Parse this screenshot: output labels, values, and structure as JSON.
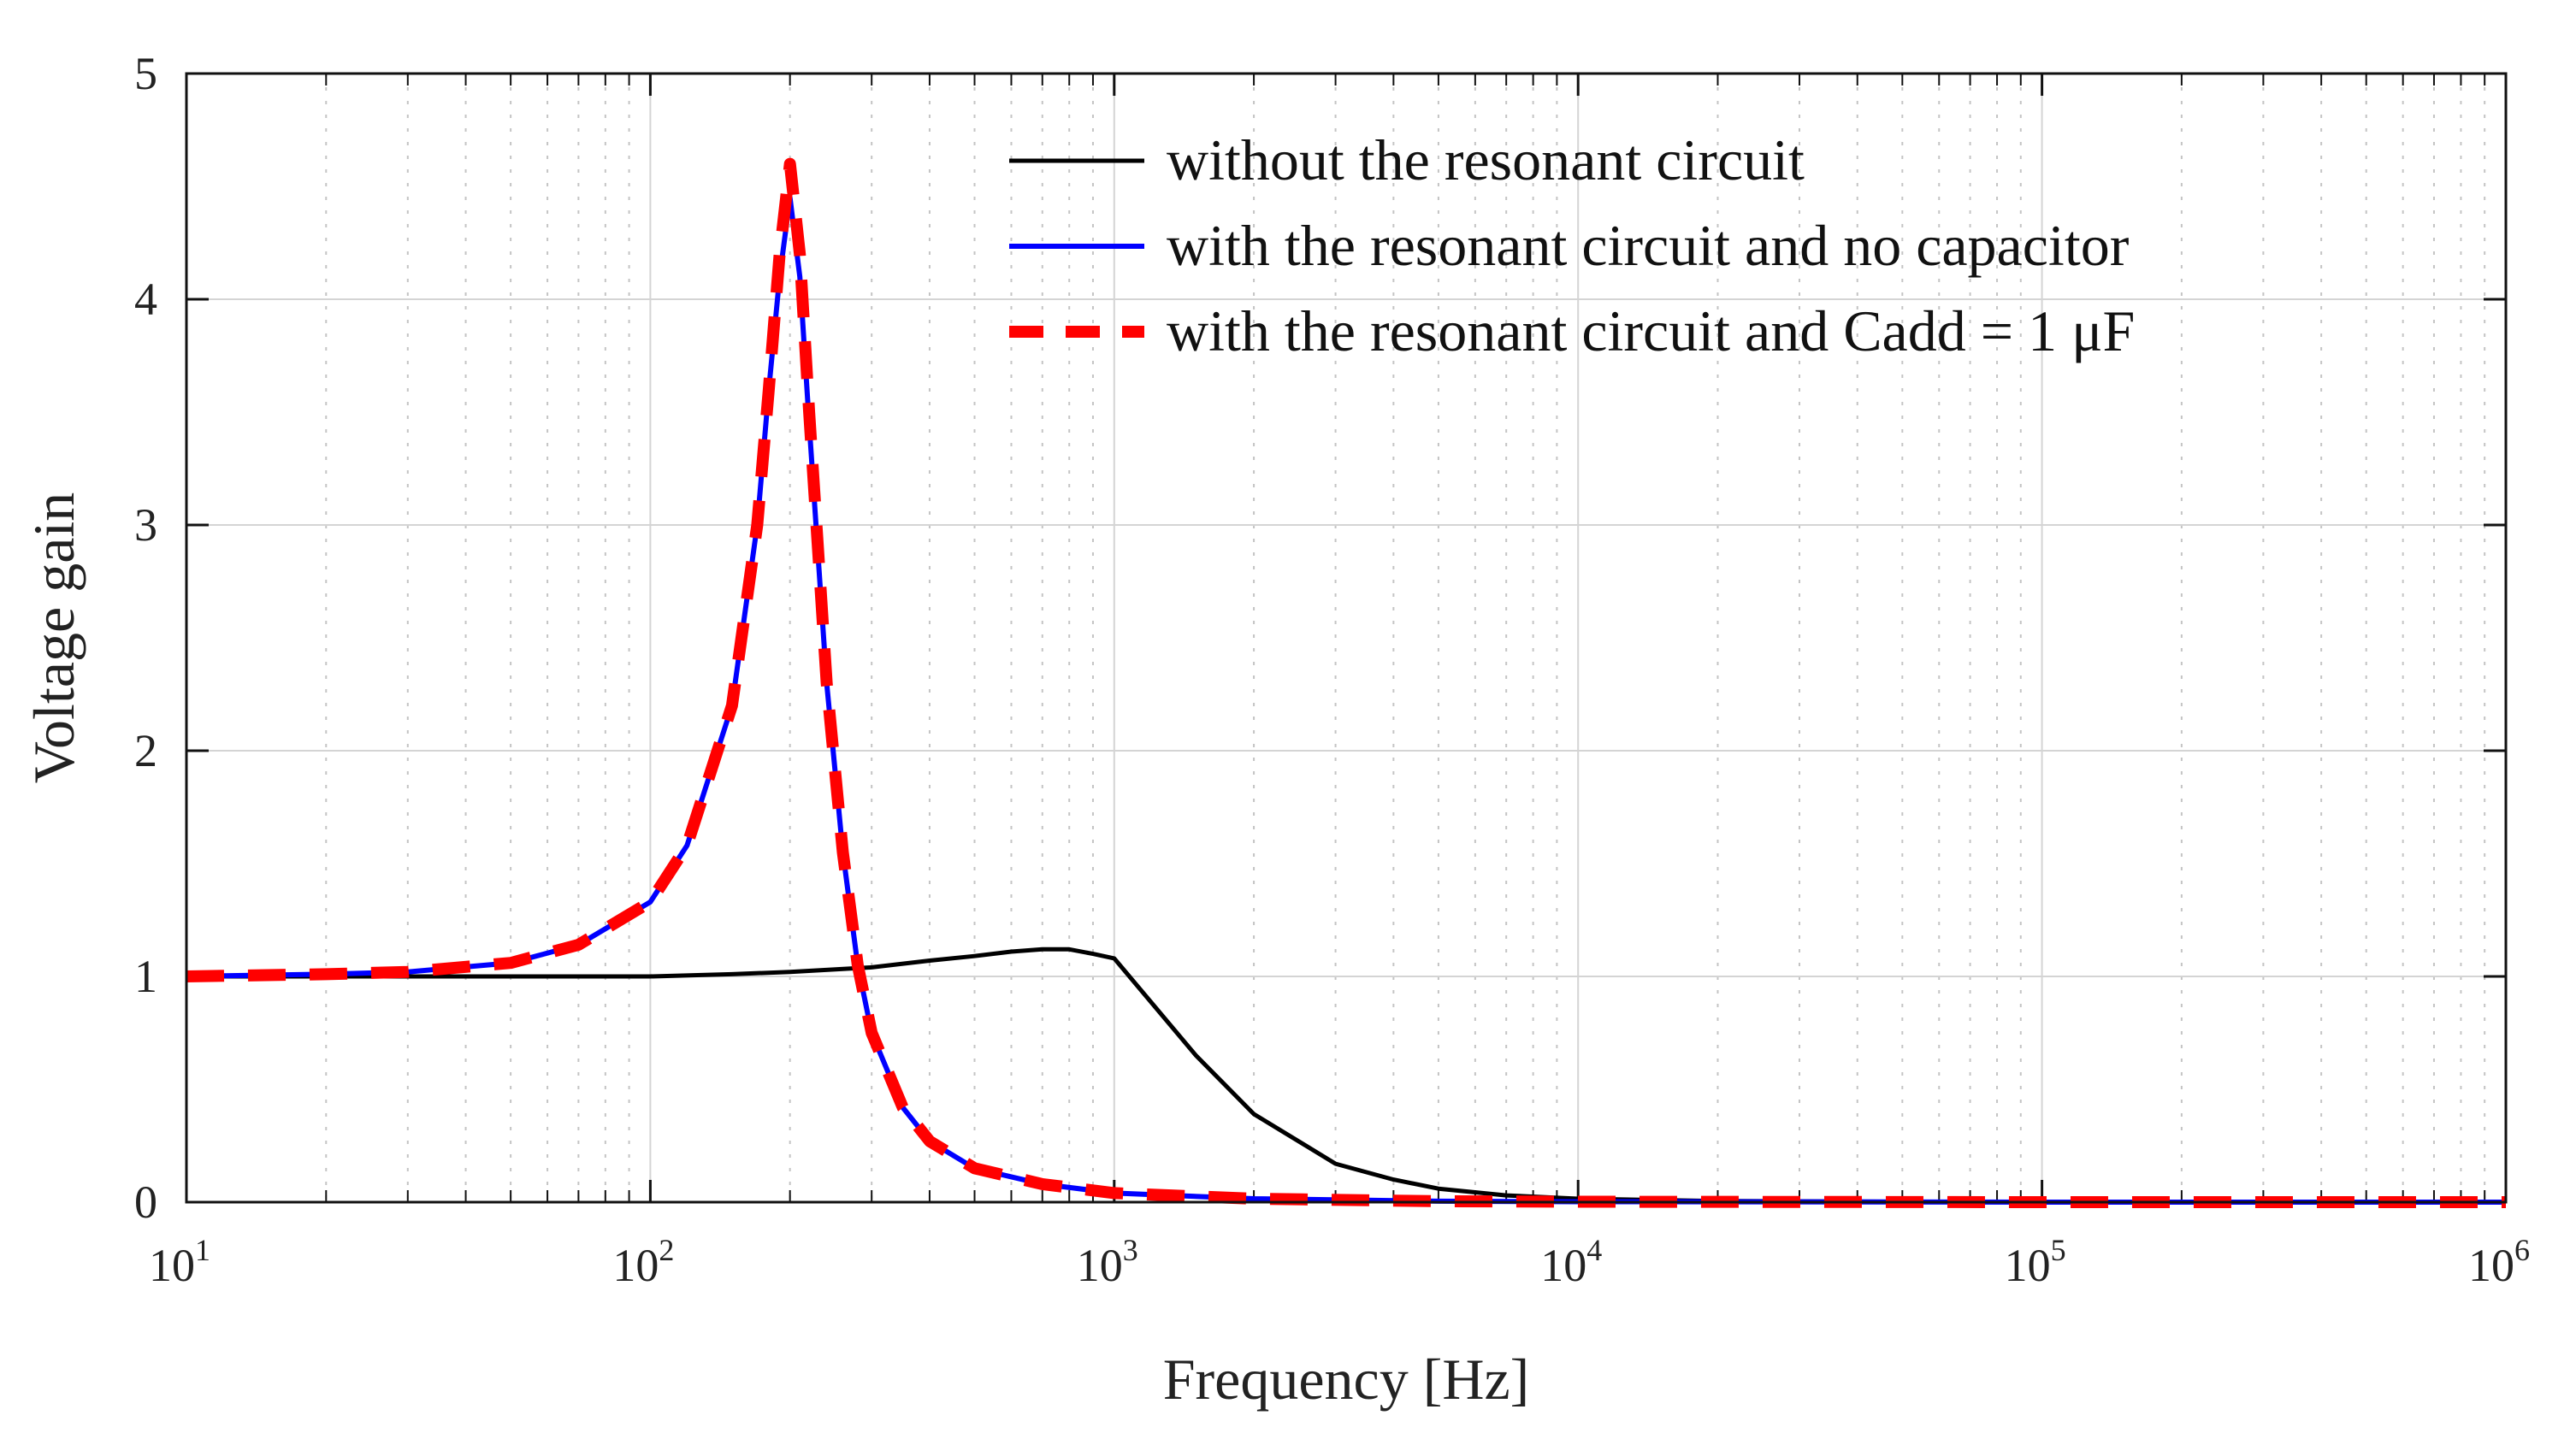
{
  "chart_data": {
    "type": "line",
    "xscale": "log",
    "title": "",
    "xlabel": "Frequency [Hz]",
    "ylabel": "Voltage gain",
    "xlim": [
      10,
      1000000
    ],
    "ylim": [
      0,
      5
    ],
    "grid": true,
    "legend_position": "top-right",
    "x_ticks": [
      {
        "base": "10",
        "exp": "1"
      },
      {
        "base": "10",
        "exp": "2"
      },
      {
        "base": "10",
        "exp": "3"
      },
      {
        "base": "10",
        "exp": "4"
      },
      {
        "base": "10",
        "exp": "5"
      },
      {
        "base": "10",
        "exp": "6"
      }
    ],
    "y_ticks": [
      "0",
      "1",
      "2",
      "3",
      "4",
      "5"
    ],
    "series": [
      {
        "name": "without the resonant circuit",
        "color": "#000000",
        "style": "solid",
        "x": [
          10,
          20,
          30,
          50,
          70,
          100,
          150,
          200,
          300,
          400,
          500,
          600,
          700,
          800,
          900,
          1000,
          1500,
          2000,
          3000,
          4000,
          5000,
          7000,
          10000,
          20000,
          50000,
          100000,
          1000000
        ],
        "y": [
          1.0,
          1.0,
          1.0,
          1.0,
          1.0,
          1.0,
          1.01,
          1.02,
          1.04,
          1.07,
          1.09,
          1.11,
          1.12,
          1.12,
          1.1,
          1.08,
          0.65,
          0.39,
          0.17,
          0.1,
          0.06,
          0.03,
          0.015,
          0.005,
          0.002,
          0.001,
          0.0
        ]
      },
      {
        "name": "with the resonant circuit and no capacitor",
        "color": "#0000ff",
        "style": "solid",
        "x": [
          10,
          20,
          30,
          50,
          70,
          100,
          120,
          150,
          170,
          180,
          190,
          200,
          210,
          220,
          240,
          260,
          280,
          300,
          350,
          400,
          500,
          700,
          1000,
          2000,
          5000,
          10000,
          100000,
          1000000
        ],
        "y": [
          1.0,
          1.01,
          1.02,
          1.06,
          1.14,
          1.33,
          1.58,
          2.2,
          3.0,
          3.6,
          4.1,
          4.45,
          4.1,
          3.45,
          2.3,
          1.55,
          1.05,
          0.75,
          0.42,
          0.27,
          0.15,
          0.08,
          0.04,
          0.015,
          0.004,
          0.002,
          0.0,
          0.0
        ]
      },
      {
        "name": "with the resonant circuit  and Cadd = 1 μF",
        "color": "#ff0000",
        "style": "dashed",
        "x": [
          10,
          20,
          30,
          50,
          70,
          100,
          120,
          150,
          170,
          180,
          190,
          200,
          210,
          220,
          240,
          260,
          280,
          300,
          350,
          400,
          500,
          700,
          1000,
          2000,
          5000,
          10000,
          100000,
          1000000
        ],
        "y": [
          1.0,
          1.01,
          1.02,
          1.06,
          1.14,
          1.33,
          1.58,
          2.2,
          3.0,
          3.6,
          4.2,
          4.6,
          4.2,
          3.5,
          2.3,
          1.55,
          1.05,
          0.75,
          0.42,
          0.27,
          0.15,
          0.08,
          0.04,
          0.015,
          0.004,
          0.002,
          0.0,
          0.0
        ]
      }
    ]
  }
}
